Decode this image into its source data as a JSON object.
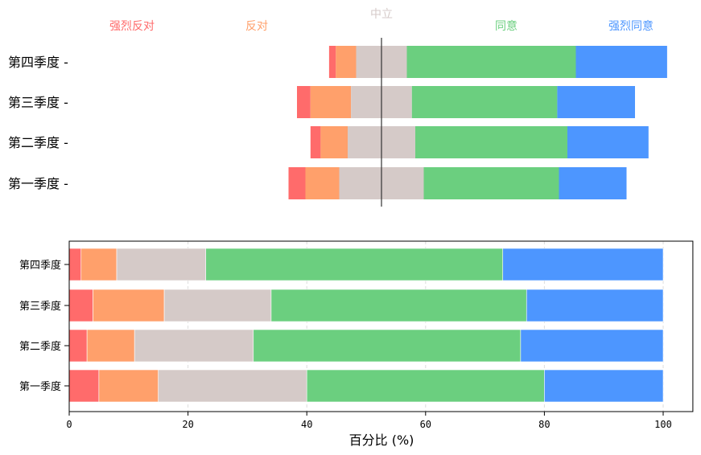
{
  "chart_data": [
    {
      "type": "bar",
      "orientation": "horizontal",
      "stacked": true,
      "diverging": true,
      "categories": [
        "第一季度",
        "第二季度",
        "第三季度",
        "第四季度"
      ],
      "series": [
        {
          "name": "强烈反对",
          "color": "#ff6b6b",
          "values": [
            5,
            3,
            4,
            2
          ]
        },
        {
          "name": "反对",
          "color": "#ffa06b",
          "values": [
            10,
            8,
            12,
            6
          ]
        },
        {
          "name": "中立",
          "color": "#d5cac8",
          "values": [
            25,
            20,
            18,
            15
          ]
        },
        {
          "name": "同意",
          "color": "#6bcf7f",
          "values": [
            40,
            45,
            43,
            50
          ]
        },
        {
          "name": "强烈同意",
          "color": "#4d96ff",
          "values": [
            20,
            24,
            23,
            27
          ]
        }
      ],
      "legend_placement": "top",
      "axes_visible": false
    },
    {
      "type": "bar",
      "orientation": "horizontal",
      "stacked": true,
      "categories": [
        "第一季度",
        "第二季度",
        "第三季度",
        "第四季度"
      ],
      "series": [
        {
          "color": "#ff6b6b",
          "values": [
            5,
            3,
            4,
            2
          ]
        },
        {
          "color": "#ffa06b",
          "values": [
            10,
            8,
            12,
            6
          ]
        },
        {
          "color": "#d5cac8",
          "values": [
            25,
            20,
            18,
            15
          ]
        },
        {
          "color": "#6bcf7f",
          "values": [
            40,
            45,
            43,
            50
          ]
        },
        {
          "color": "#4d96ff",
          "values": [
            20,
            24,
            23,
            27
          ]
        }
      ],
      "xlabel": "百分比 (%)",
      "xlim": [
        0,
        105
      ],
      "xticks": [
        "0",
        "20",
        "40",
        "60",
        "80",
        "100"
      ],
      "grid": "x dashed"
    }
  ]
}
